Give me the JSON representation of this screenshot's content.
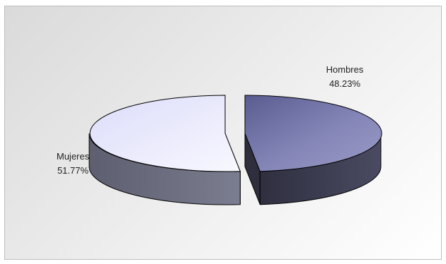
{
  "chart_data": {
    "type": "pie",
    "title": "",
    "variant": "3d-exploded",
    "slices": [
      {
        "name": "Hombres",
        "value": 48.23,
        "label": "48.23%"
      },
      {
        "name": "Mujeres",
        "value": 51.77,
        "label": "51.77%"
      }
    ],
    "colors": {
      "Hombres_top": "#6e6fa4",
      "Hombres_side": "#3c3c52",
      "Mujeres_top": "#ececff",
      "Mujeres_side": "#6e7082",
      "outline": "#000000"
    }
  }
}
